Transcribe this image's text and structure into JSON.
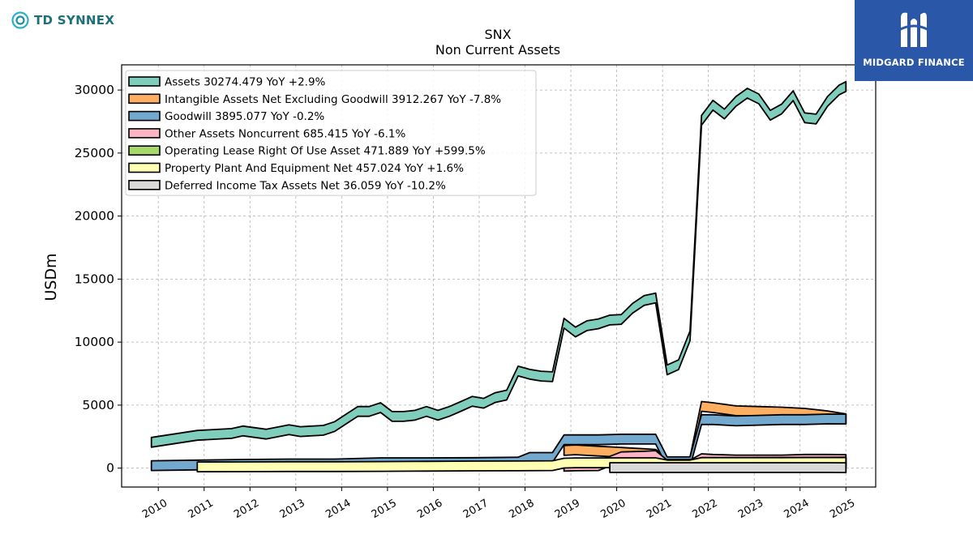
{
  "brand": {
    "left_logo_text": "TD SYNNEX",
    "right_logo_text": "MIDGARD FINANCE",
    "right_bg_color": "#2a57a7",
    "left_color": "#1f8fa0"
  },
  "chart_data": {
    "type": "area",
    "title": "SNX",
    "subtitle": "Non Current  Assets",
    "ylabel": "USDm",
    "xlabel": "",
    "ylim": [
      -1500,
      32000
    ],
    "yticks": [
      0,
      5000,
      10000,
      15000,
      20000,
      25000,
      30000
    ],
    "xlim": [
      2009.2,
      2025.65
    ],
    "xticks": [
      "2010",
      "2011",
      "2012",
      "2013",
      "2014",
      "2015",
      "2016",
      "2017",
      "2018",
      "2019",
      "2020",
      "2021",
      "2022",
      "2023",
      "2024",
      "2025"
    ],
    "grid": true,
    "legend_position": "top-left",
    "series": [
      {
        "name": "Assets  30274.479 YoY +2.9%",
        "color": "#7fcdbb",
        "x": [
          2009.85,
          2010.85,
          2011.6,
          2011.85,
          2012.35,
          2012.85,
          2013.1,
          2013.6,
          2013.85,
          2014.1,
          2014.35,
          2014.6,
          2014.85,
          2015.1,
          2015.35,
          2015.6,
          2015.85,
          2016.1,
          2016.35,
          2016.6,
          2016.85,
          2017.1,
          2017.35,
          2017.6,
          2017.85,
          2018.1,
          2018.35,
          2018.6,
          2018.85,
          2019.1,
          2019.35,
          2019.6,
          2019.85,
          2020.1,
          2020.35,
          2020.6,
          2020.85,
          2021.1,
          2021.35,
          2021.6,
          2021.85,
          2022.1,
          2022.35,
          2022.6,
          2022.85,
          2023.1,
          2023.35,
          2023.6,
          2023.85,
          2024.1,
          2024.35,
          2024.6,
          2024.85,
          2025.0
        ],
        "y": [
          2050,
          2600,
          2750,
          2950,
          2700,
          3050,
          2900,
          3000,
          3300,
          3900,
          4500,
          4500,
          4800,
          4100,
          4100,
          4200,
          4500,
          4200,
          4500,
          4900,
          5300,
          5150,
          5600,
          5800,
          7700,
          7450,
          7300,
          7250,
          11500,
          10800,
          11300,
          11450,
          11750,
          11800,
          12700,
          13300,
          13500,
          7800,
          8200,
          10500,
          27600,
          28800,
          28100,
          29100,
          29750,
          29300,
          28000,
          28500,
          29550,
          27800,
          27700,
          29100,
          30000,
          30274
        ]
      },
      {
        "name": "Intangible Assets Net Excluding Goodwill  3912.267 YoY -7.8%",
        "color": "#fdae61",
        "x": [
          2018.85,
          2019.1,
          2019.6,
          2020.1,
          2020.6,
          2020.85,
          2021.1,
          2021.6,
          2021.85,
          2022.1,
          2022.6,
          2023.1,
          2023.6,
          2024.1,
          2024.6,
          2025.0
        ],
        "y": [
          1400,
          1450,
          1350,
          1250,
          1150,
          1100,
          450,
          480,
          4900,
          4800,
          4550,
          4500,
          4450,
          4350,
          4150,
          3912
        ]
      },
      {
        "name": "Goodwill  3895.077 YoY -0.2%",
        "color": "#74a9cf",
        "x": [
          2009.85,
          2010.85,
          2011.85,
          2012.85,
          2013.85,
          2014.85,
          2015.85,
          2016.85,
          2017.85,
          2018.1,
          2018.6,
          2018.85,
          2019.1,
          2019.6,
          2020.1,
          2020.6,
          2020.85,
          2021.1,
          2021.6,
          2021.85,
          2022.1,
          2022.6,
          2023.1,
          2023.6,
          2024.1,
          2024.6,
          2025.0
        ],
        "y": [
          200,
          250,
          300,
          330,
          330,
          430,
          430,
          440,
          480,
          850,
          850,
          2250,
          2250,
          2250,
          2300,
          2300,
          2300,
          500,
          500,
          3850,
          3850,
          3750,
          3800,
          3850,
          3850,
          3900,
          3895
        ]
      },
      {
        "name": "Other Assets Noncurrent  685.415 YoY -6.1%",
        "color": "#fbb4c4",
        "x": [
          2018.85,
          2019.1,
          2019.6,
          2020.1,
          2020.6,
          2020.85,
          2021.1,
          2021.6,
          2021.85,
          2022.1,
          2022.6,
          2023.1,
          2023.6,
          2024.1,
          2024.6,
          2025.0
        ],
        "y": [
          150,
          180,
          200,
          900,
          950,
          1000,
          250,
          250,
          750,
          700,
          650,
          650,
          650,
          700,
          700,
          685
        ]
      },
      {
        "name": "Operating Lease Right Of Use Asset  471.889 YoY +599.5%",
        "color": "#a6d96a",
        "x": [
          2019.85,
          2020.1,
          2020.6,
          2021.1,
          2021.6,
          2021.85,
          2022.1,
          2022.6,
          2023.1,
          2023.6,
          2024.1,
          2024.6,
          2025.0
        ],
        "y": [
          300,
          320,
          330,
          300,
          300,
          400,
          420,
          430,
          440,
          450,
          460,
          470,
          472
        ]
      },
      {
        "name": "Property Plant And Equipment Net  457.024 YoY +1.6%",
        "color": "#ffffb3",
        "x": [
          2010.85,
          2011.85,
          2012.85,
          2013.85,
          2014.85,
          2015.85,
          2016.85,
          2017.85,
          2018.6,
          2018.85,
          2019.1,
          2019.6,
          2020.1,
          2020.6,
          2020.85,
          2021.1,
          2021.6,
          2021.85,
          2022.1,
          2022.6,
          2023.1,
          2023.6,
          2024.1,
          2024.6,
          2025.0
        ],
        "y": [
          100,
          110,
          120,
          120,
          130,
          150,
          170,
          180,
          200,
          400,
          420,
          420,
          430,
          430,
          430,
          250,
          250,
          450,
          450,
          450,
          450,
          450,
          455,
          455,
          457
        ]
      },
      {
        "name": "Deferred Income Tax Assets Net  36.059 YoY -10.2%",
        "color": "#d9d9d9",
        "x": [
          2019.85,
          2020.1,
          2020.6,
          2021.1,
          2021.6,
          2021.85,
          2022.1,
          2022.6,
          2023.1,
          2023.6,
          2024.1,
          2024.6,
          2025.0
        ],
        "y": [
          45,
          45,
          45,
          40,
          40,
          40,
          40,
          40,
          40,
          40,
          40,
          40,
          36
        ]
      }
    ]
  }
}
